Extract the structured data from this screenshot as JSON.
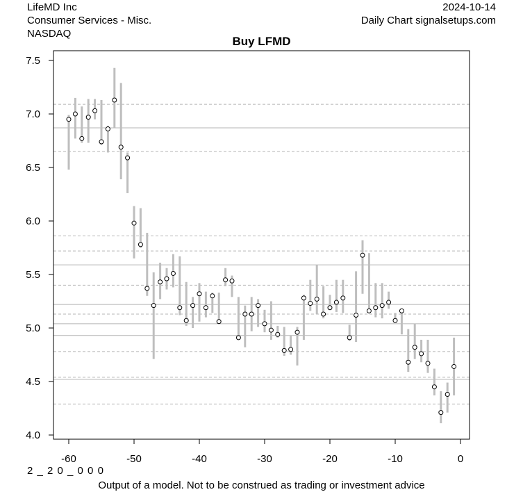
{
  "header": {
    "company": "LifeMD Inc",
    "sector": "Consumer Services - Misc.",
    "exchange": "NASDAQ",
    "date": "2024-10-14",
    "source": "Daily Chart signalsetups.com"
  },
  "footer": {
    "code": "2 _ 2 0 _ 0 0 0",
    "disclaimer": "Output of a model. Not to be construed as trading or investment advice"
  },
  "chart_data": {
    "type": "scatter",
    "title": "Buy LFMD",
    "xlabel": "",
    "ylabel": "",
    "xlim": [
      -61,
      1
    ],
    "ylim": [
      4.0,
      7.5
    ],
    "x_ticks": [
      -60,
      -50,
      -40,
      -30,
      -20,
      -10,
      0
    ],
    "y_ticks": [
      "4.0",
      "4.5",
      "5.0",
      "5.5",
      "6.0",
      "6.5",
      "7.0",
      "7.5"
    ],
    "solid_levels": [
      6.87,
      5.59,
      5.22,
      5.04,
      4.93,
      4.52
    ],
    "dashed_levels": [
      7.09,
      6.65,
      5.86,
      5.72,
      5.4,
      5.13,
      4.78,
      4.54,
      4.29
    ],
    "bars": {
      "x": [
        -60,
        -59,
        -58,
        -57,
        -56,
        -55,
        -54,
        -53,
        -52,
        -51,
        -50,
        -49,
        -48,
        -47,
        -46,
        -45,
        -44,
        -43,
        -42,
        -41,
        -40,
        -39,
        -38,
        -37,
        -36,
        -35,
        -34,
        -33,
        -32,
        -31,
        -30,
        -29,
        -28,
        -27,
        -26,
        -25,
        -24,
        -23,
        -22,
        -21,
        -20,
        -19,
        -18,
        -17,
        -16,
        -15,
        -14,
        -13,
        -12,
        -11,
        -10,
        -9,
        -8,
        -7,
        -6,
        -5,
        -4,
        -3,
        -2,
        -1
      ],
      "high": [
        6.99,
        7.15,
        7.07,
        7.14,
        7.14,
        7.13,
        6.89,
        7.43,
        7.29,
        6.64,
        6.14,
        6.12,
        5.89,
        5.52,
        5.61,
        5.56,
        5.69,
        5.67,
        5.43,
        5.29,
        5.42,
        5.34,
        5.33,
        5.33,
        5.56,
        5.49,
        5.29,
        5.21,
        5.29,
        5.27,
        5.17,
        5.25,
        5.02,
        5.01,
        4.93,
        5.01,
        5.31,
        5.45,
        5.59,
        5.39,
        5.31,
        5.45,
        5.45,
        5.03,
        5.53,
        5.82,
        5.7,
        5.42,
        5.42,
        5.34,
        5.14,
        5.18,
        4.99,
        5.04,
        4.89,
        4.89,
        4.62,
        4.41,
        4.49,
        4.91
      ],
      "low": [
        6.48,
        6.77,
        6.73,
        6.73,
        6.95,
        6.71,
        6.64,
        6.87,
        6.39,
        6.26,
        5.65,
        5.75,
        5.3,
        4.71,
        5.27,
        5.36,
        5.38,
        5.12,
        5.02,
        5.0,
        5.06,
        5.1,
        5.14,
        5.04,
        5.39,
        5.29,
        4.9,
        4.82,
        4.97,
        5.01,
        4.96,
        4.89,
        4.91,
        4.74,
        4.75,
        4.65,
        4.89,
        5.16,
        5.13,
        5.09,
        5.18,
        5.15,
        5.14,
        4.88,
        4.87,
        5.32,
        5.15,
        5.1,
        5.09,
        5.18,
        5.06,
        4.94,
        4.59,
        4.71,
        4.68,
        4.58,
        4.37,
        4.11,
        4.21,
        4.37
      ],
      "close": [
        6.95,
        7.0,
        6.77,
        6.97,
        7.03,
        6.74,
        6.86,
        7.13,
        6.69,
        6.59,
        5.98,
        5.78,
        5.37,
        5.21,
        5.43,
        5.46,
        5.51,
        5.19,
        5.07,
        5.21,
        5.32,
        5.19,
        5.3,
        5.06,
        5.45,
        5.44,
        4.91,
        5.13,
        5.13,
        5.21,
        5.04,
        4.98,
        4.94,
        4.79,
        4.8,
        4.96,
        5.28,
        5.23,
        5.27,
        5.13,
        5.19,
        5.24,
        5.28,
        4.91,
        5.12,
        5.68,
        5.16,
        5.19,
        5.21,
        5.24,
        5.07,
        5.16,
        4.68,
        4.82,
        4.76,
        4.67,
        4.45,
        4.21,
        4.38,
        4.64
      ]
    }
  }
}
